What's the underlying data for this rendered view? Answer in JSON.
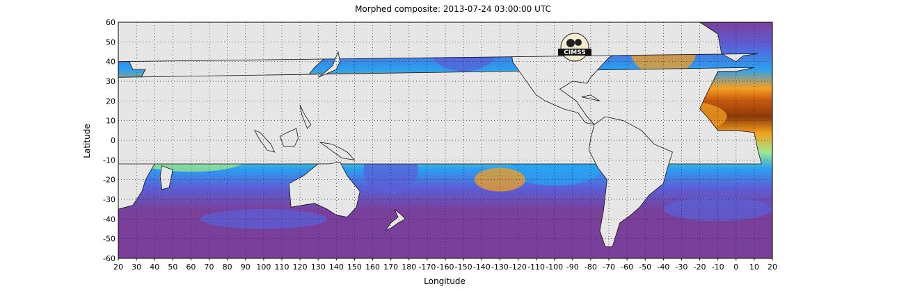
{
  "title": "Morphed composite: 2013-07-24 03:00:00 UTC",
  "xlabel": "Longitude",
  "ylabel": "Latitude",
  "x_ticks": [
    "20",
    "30",
    "40",
    "50",
    "60",
    "70",
    "80",
    "90",
    "100",
    "110",
    "120",
    "130",
    "140",
    "150",
    "160",
    "170",
    "180",
    "-170",
    "-160",
    "-150",
    "-140",
    "-130",
    "-120",
    "-110",
    "-100",
    "-90",
    "-80",
    "-70",
    "-60",
    "-50",
    "-40",
    "-30",
    "-20",
    "-10",
    "0",
    "10",
    "20"
  ],
  "y_ticks": [
    "60",
    "50",
    "40",
    "30",
    "20",
    "10",
    "0",
    "-10",
    "-20",
    "-30",
    "-40",
    "-50",
    "-60"
  ],
  "logo_text": "CIMSS",
  "colors": {
    "land": "#e6e6e6",
    "very_dry": "#7a3f9a",
    "dry": "#5a60d8",
    "low": "#2aa0f0",
    "mid": "#9ee88c",
    "high": "#f4a020",
    "very_high": "#c85a10",
    "extreme": "#8a3a08"
  }
}
